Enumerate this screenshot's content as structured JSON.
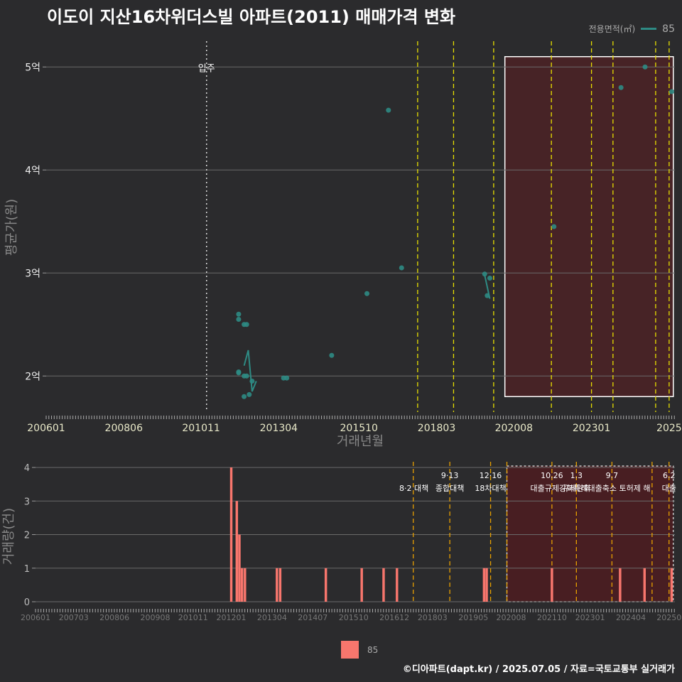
{
  "title": "이도이 지산16차위더스빌 아파트(2011) 매매가격 변화",
  "legend": {
    "title": "전용면적(㎡)",
    "series_label": "85",
    "bar_label": "85"
  },
  "footer": "©디아파트(dapt.kr) / 2025.07.05 / 자료=국토교통부 실거래가",
  "colors": {
    "line": "#2e8b84",
    "bar": "#f8766d",
    "policy": "#e8e000",
    "policy_bottom": "#e8a000",
    "shade": "#4a2226"
  },
  "chart_data": [
    {
      "type": "scatter",
      "title": "price",
      "xlabel": "거래년월",
      "ylabel": "평균가(원)",
      "xlim": [
        2006.0,
        2025.6
      ],
      "ylim": [
        1.65,
        5.25
      ],
      "y_ticks": [
        2,
        3,
        4,
        5
      ],
      "y_tick_labels": [
        "2억",
        "3억",
        "4억",
        "5억"
      ],
      "x_ticks": [
        2006.0,
        2008.42,
        2010.83,
        2013.25,
        2015.75,
        2018.17,
        2020.58,
        2023.0,
        2025.42
      ],
      "x_tick_labels": [
        "200601",
        "200806",
        "201011",
        "201304",
        "201510",
        "201803",
        "202008",
        "202301",
        "2025"
      ],
      "occupancy": {
        "x": 2011.0,
        "label": "입주"
      },
      "policy_lines": [
        2017.58,
        2018.7,
        2019.95,
        2021.75,
        2023.0,
        2023.67,
        2025.0,
        2025.42
      ],
      "highlight_range": [
        2020.3,
        2025.55
      ],
      "highlight_y": [
        1.8,
        5.1
      ],
      "series": [
        {
          "name": "85",
          "points": [
            [
              2012.0,
              2.6
            ],
            [
              2012.0,
              2.55
            ],
            [
              2012.0,
              2.04
            ],
            [
              2012.0,
              2.03
            ],
            [
              2012.17,
              2.5
            ],
            [
              2012.25,
              2.5
            ],
            [
              2012.17,
              2.0
            ],
            [
              2012.25,
              2.0
            ],
            [
              2012.17,
              1.8
            ],
            [
              2012.33,
              1.82
            ],
            [
              2012.42,
              1.95
            ],
            [
              2013.4,
              1.98
            ],
            [
              2013.5,
              1.98
            ],
            [
              2014.9,
              2.2
            ],
            [
              2016.0,
              2.8
            ],
            [
              2016.67,
              4.58
            ],
            [
              2017.08,
              3.05
            ],
            [
              2019.67,
              2.99
            ],
            [
              2019.75,
              2.78
            ],
            [
              2019.83,
              2.95
            ],
            [
              2021.83,
              3.45
            ],
            [
              2023.92,
              4.8
            ],
            [
              2024.67,
              5.0
            ],
            [
              2025.5,
              4.76
            ]
          ]
        }
      ],
      "lines": [
        [
          [
            2012.17,
            2.1
          ],
          [
            2012.3,
            2.25
          ],
          [
            2012.42,
            1.85
          ],
          [
            2012.55,
            1.95
          ]
        ],
        [
          [
            2019.67,
            2.98
          ],
          [
            2019.83,
            2.75
          ]
        ]
      ]
    },
    {
      "type": "bar",
      "title": "volume",
      "xlabel": "",
      "ylabel": "거래량(건)",
      "xlim": [
        2006.0,
        2025.6
      ],
      "ylim": [
        0,
        4
      ],
      "y_ticks": [
        0,
        1,
        2,
        3,
        4
      ],
      "y_tick_labels": [
        "0",
        "1",
        "2",
        "3",
        "4"
      ],
      "x_ticks": [
        2006.0,
        2007.17,
        2008.42,
        2009.67,
        2010.83,
        2012.0,
        2013.25,
        2014.5,
        2015.75,
        2017.0,
        2018.17,
        2019.42,
        2020.58,
        2021.83,
        2023.0,
        2024.25,
        2025.42
      ],
      "x_tick_labels": [
        "200601",
        "200703",
        "200806",
        "200908",
        "201011",
        "201201",
        "201304",
        "201407",
        "201510",
        "201612",
        "201803",
        "201905",
        "202008",
        "202110",
        "202301",
        "202404",
        "20250"
      ],
      "policy_lines": [
        2017.58,
        2018.7,
        2019.95,
        2020.45,
        2021.83,
        2022.58,
        2023.67,
        2024.9,
        2025.42
      ],
      "policy_labels": [
        {
          "x": 2017.6,
          "line1": "",
          "line2": "8·2 대책"
        },
        {
          "x": 2018.7,
          "line1": "9·13",
          "line2": "종합대책"
        },
        {
          "x": 2019.95,
          "line1": "12·16",
          "line2": "18차대책"
        },
        {
          "x": 2021.83,
          "line1": "10.26",
          "line2": "대출규제강화"
        },
        {
          "x": 2022.58,
          "line1": "1.3",
          "line2": "규제완화"
        },
        {
          "x": 2023.67,
          "line1": "9.7",
          "line2": "특례대출축소 토허제 해"
        },
        {
          "x": 2025.42,
          "line1": "6.2",
          "line2": "대출"
        }
      ],
      "highlight_range": [
        2020.45,
        2025.55
      ],
      "bars": [
        {
          "x": 2012.0,
          "value": 4
        },
        {
          "x": 2012.17,
          "value": 3
        },
        {
          "x": 2012.25,
          "value": 2
        },
        {
          "x": 2012.33,
          "value": 1
        },
        {
          "x": 2012.42,
          "value": 1
        },
        {
          "x": 2013.4,
          "value": 1
        },
        {
          "x": 2013.5,
          "value": 1
        },
        {
          "x": 2014.9,
          "value": 1
        },
        {
          "x": 2016.0,
          "value": 1
        },
        {
          "x": 2016.67,
          "value": 1
        },
        {
          "x": 2017.08,
          "value": 1
        },
        {
          "x": 2019.75,
          "value": 1
        },
        {
          "x": 2019.83,
          "value": 1
        },
        {
          "x": 2021.83,
          "value": 1
        },
        {
          "x": 2023.92,
          "value": 1
        },
        {
          "x": 2024.67,
          "value": 1
        },
        {
          "x": 2025.5,
          "value": 1
        }
      ]
    }
  ]
}
